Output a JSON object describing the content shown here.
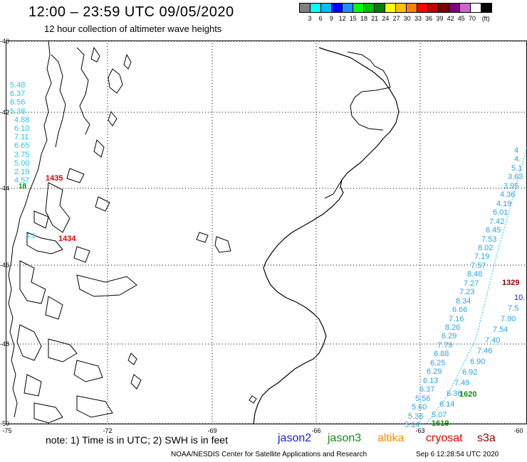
{
  "header": {
    "title": "12:00 – 23:59 UTC 09/05/2020",
    "subtitle": "12 hour collection of altimeter wave heights"
  },
  "legend": {
    "colors": [
      "#7f7f7f",
      "#00ffff",
      "#00bfff",
      "#0000ff",
      "#1e90ff",
      "#00ff00",
      "#00c000",
      "#008000",
      "#ffff00",
      "#ffc000",
      "#ff8000",
      "#ff0000",
      "#c00000",
      "#800000",
      "#800080",
      "#cc66cc",
      "#ffffff",
      "#000000"
    ],
    "labels": [
      "3",
      "6",
      "9",
      "12",
      "15",
      "18",
      "21",
      "24",
      "27",
      "30",
      "33",
      "36",
      "39",
      "42",
      "45",
      "70",
      "(ft)"
    ]
  },
  "axes": {
    "lat_labels": [
      "-40",
      "-42",
      "-44",
      "-46",
      "-48",
      "-50"
    ],
    "lon_labels": [
      "-75",
      "-72",
      "-69",
      "-66",
      "-63",
      "-60"
    ]
  },
  "footer": {
    "note": "note:  1) Time is in UTC;  2) SWH is in feet",
    "sats": [
      {
        "name": "jason2",
        "color": "#1a1ad8"
      },
      {
        "name": "jason3",
        "color": "#138a13"
      },
      {
        "name": "altika",
        "color": "#ff8c00"
      },
      {
        "name": "cryosat",
        "color": "#e00000"
      },
      {
        "name": "s3a",
        "color": "#8b0000"
      }
    ],
    "credit": "NOAA/NESDIS Center for Satellite Applications and Research",
    "timestamp": "Sep  6 12:28:54 UTC 2020"
  },
  "west_track": {
    "values": [
      "5.48",
      "6.37",
      "6.56",
      "5.38",
      "4.88",
      "6.10",
      "7.11",
      "6.65",
      "3.75",
      "5.00",
      "2.19",
      "4.57"
    ],
    "time": "1435",
    "time2": "1434",
    "extra": [
      "18",
      "4.1"
    ]
  },
  "east_track": {
    "values": [
      "4",
      "4.",
      "5.1",
      "3.63",
      "3.95",
      "4.36",
      "4.19",
      "6.01",
      "7.42",
      "6.45",
      "7.53",
      "8.02",
      "7.19",
      "7.57",
      "8.48",
      "7.27",
      "7.23",
      "8.34",
      "6.66",
      "7.16",
      "8.26",
      "6.29",
      "7.79",
      "6.88",
      "6.25",
      "6.29",
      "6.13",
      "6.37",
      "5.56",
      "5.60",
      "5.36",
      "5.14"
    ],
    "right_values": [
      "10.",
      "7.5",
      "7.90",
      "7.54",
      "7.40",
      "7.46",
      "6.90",
      "6.92",
      "7.49",
      "6.36",
      "6.14",
      "5.07"
    ],
    "time_top": "1329",
    "time_mid": "1620",
    "time_bot": "1619"
  }
}
